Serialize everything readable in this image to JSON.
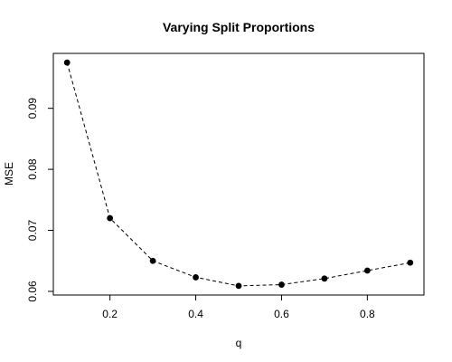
{
  "chart_data": {
    "type": "line",
    "title": "Varying Split Proportions",
    "xlabel": "q",
    "ylabel": "MSE",
    "x": [
      0.1,
      0.2,
      0.3,
      0.4,
      0.5,
      0.6,
      0.7,
      0.8,
      0.9
    ],
    "series": [
      {
        "values": [
          0.0975,
          0.072,
          0.065,
          0.0623,
          0.0609,
          0.0611,
          0.0621,
          0.0634,
          0.0647
        ]
      }
    ],
    "xticks": [
      0.2,
      0.4,
      0.6,
      0.8
    ],
    "xtick_labels": [
      "0.2",
      "0.4",
      "0.6",
      "0.8"
    ],
    "yticks": [
      0.06,
      0.07,
      0.08,
      0.09
    ],
    "ytick_labels": [
      "0.06",
      "0.07",
      "0.08",
      "0.09"
    ],
    "xlim": [
      0.068,
      0.932
    ],
    "ylim": [
      0.0594,
      0.099
    ],
    "line_style": "dashed",
    "marker": "filled-circle",
    "grid": false,
    "colors": {
      "line": "#000000",
      "marker": "#000000"
    }
  }
}
